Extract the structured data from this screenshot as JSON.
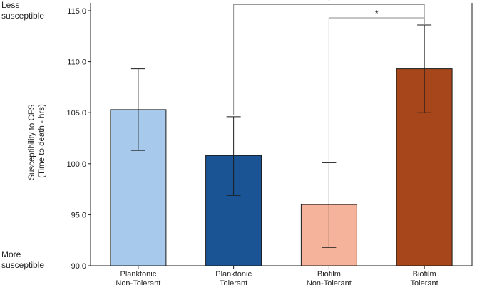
{
  "annotations": {
    "top": [
      "Less",
      "susceptible"
    ],
    "bottom": [
      "More",
      "susceptible"
    ]
  },
  "chart_data": {
    "type": "bar",
    "title": "",
    "ylabel_lines": [
      "Susceptibility to CFS",
      "(Time to death - hrs)"
    ],
    "ylim": [
      90,
      115
    ],
    "yticks": [
      "90.0",
      "95.0",
      "100.0",
      "105.0",
      "110.0",
      "115.0"
    ],
    "grid": false,
    "categories": [
      [
        "Planktonic",
        "Non-Tolerant"
      ],
      [
        "Planktonic",
        "Tolerant"
      ],
      [
        "Biofilm",
        "Non-Tolerant"
      ],
      [
        "Biofilm",
        "Tolerant"
      ]
    ],
    "values": [
      105.3,
      100.8,
      96.0,
      109.3
    ],
    "error_low": [
      101.3,
      96.9,
      91.8,
      105.0
    ],
    "error_high": [
      109.3,
      104.6,
      100.1,
      113.6
    ],
    "colors": [
      "#a7c9ec",
      "#1a5494",
      "#f5b39b",
      "#a6461a"
    ],
    "significance": [
      {
        "from": 1,
        "to": 3,
        "label": "*",
        "y": 115.6
      },
      {
        "from": 2,
        "to": 3,
        "label": "*",
        "y": 114.3
      }
    ]
  }
}
